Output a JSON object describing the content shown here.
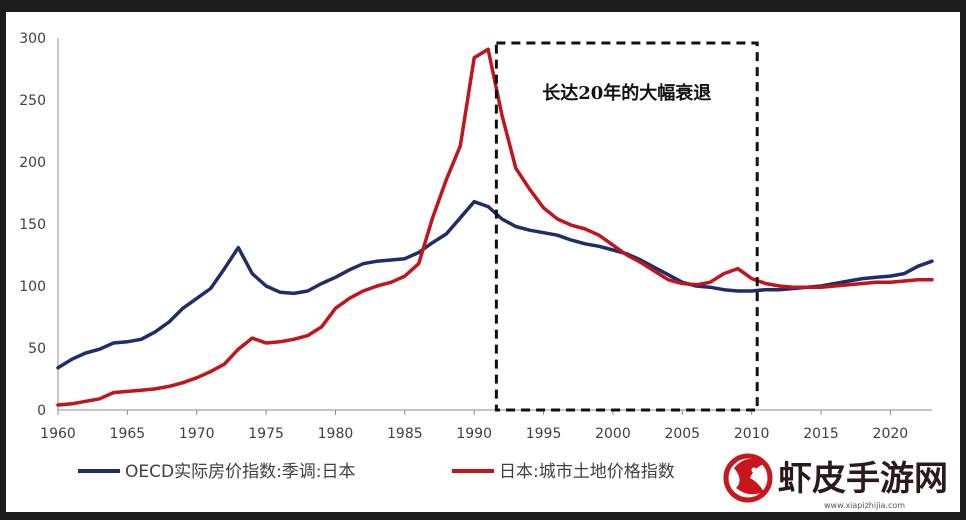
{
  "chart_data": {
    "type": "line",
    "title": "",
    "xlabel": "",
    "ylabel": "",
    "xlim": [
      1960,
      2023
    ],
    "ylim": [
      0,
      300
    ],
    "xticks": [
      1960,
      1965,
      1970,
      1975,
      1980,
      1985,
      1990,
      1995,
      2000,
      2005,
      2010,
      2015,
      2020
    ],
    "yticks": [
      0,
      50,
      100,
      150,
      200,
      250,
      300
    ],
    "grid": false,
    "legend_position": "bottom",
    "series": [
      {
        "name": "OECD实际房价指数:季调:日本",
        "color": "#1f2d6b",
        "x": [
          1960,
          1961,
          1962,
          1963,
          1964,
          1965,
          1966,
          1967,
          1968,
          1969,
          1970,
          1971,
          1972,
          1973,
          1974,
          1975,
          1976,
          1977,
          1978,
          1979,
          1980,
          1981,
          1982,
          1983,
          1984,
          1985,
          1986,
          1987,
          1988,
          1989,
          1990,
          1991,
          1992,
          1993,
          1994,
          1995,
          1996,
          1997,
          1998,
          1999,
          2000,
          2001,
          2002,
          2003,
          2004,
          2005,
          2006,
          2007,
          2008,
          2009,
          2010,
          2011,
          2012,
          2013,
          2014,
          2015,
          2016,
          2017,
          2018,
          2019,
          2020,
          2021,
          2022,
          2023
        ],
        "y": [
          34,
          41,
          46,
          49,
          54,
          55,
          57,
          63,
          71,
          82,
          90,
          98,
          114,
          131,
          110,
          100,
          95,
          94,
          96,
          102,
          107,
          113,
          118,
          120,
          121,
          122,
          127,
          135,
          142,
          155,
          168,
          164,
          154,
          148,
          145,
          143,
          141,
          137,
          134,
          132,
          129,
          126,
          121,
          115,
          109,
          103,
          100,
          99,
          97,
          96,
          96,
          97,
          97,
          98,
          99,
          100,
          102,
          104,
          106,
          107,
          108,
          110,
          116,
          120
        ]
      },
      {
        "name": "日本:城市土地价格指数",
        "color": "#c0151b",
        "x": [
          1960,
          1961,
          1962,
          1963,
          1964,
          1965,
          1966,
          1967,
          1968,
          1969,
          1970,
          1971,
          1972,
          1973,
          1974,
          1975,
          1976,
          1977,
          1978,
          1979,
          1980,
          1981,
          1982,
          1983,
          1984,
          1985,
          1986,
          1987,
          1988,
          1989,
          1990,
          1991,
          1992,
          1993,
          1994,
          1995,
          1996,
          1997,
          1998,
          1999,
          2000,
          2001,
          2002,
          2003,
          2004,
          2005,
          2006,
          2007,
          2008,
          2009,
          2010,
          2011,
          2012,
          2013,
          2014,
          2015,
          2016,
          2017,
          2018,
          2019,
          2020,
          2021,
          2022,
          2023
        ],
        "y": [
          4,
          5,
          7,
          9,
          14,
          15,
          16,
          17,
          19,
          22,
          26,
          31,
          37,
          49,
          58,
          54,
          55,
          57,
          60,
          67,
          82,
          90,
          96,
          100,
          103,
          108,
          118,
          155,
          186,
          213,
          284,
          291,
          238,
          195,
          178,
          163,
          154,
          149,
          146,
          141,
          133,
          125,
          119,
          112,
          105,
          102,
          101,
          103,
          110,
          114,
          106,
          102,
          100,
          99,
          99,
          99,
          100,
          101,
          102,
          103,
          103,
          104,
          105,
          105
        ]
      }
    ],
    "annotations": [
      {
        "text": "长达20年的大幅衰退",
        "box_x_range": [
          1991.6,
          2010.4
        ],
        "box_y_range": [
          0,
          296
        ]
      }
    ]
  },
  "watermark": {
    "text": "虾皮手游网",
    "url": "www.xiapizhijia.com"
  }
}
